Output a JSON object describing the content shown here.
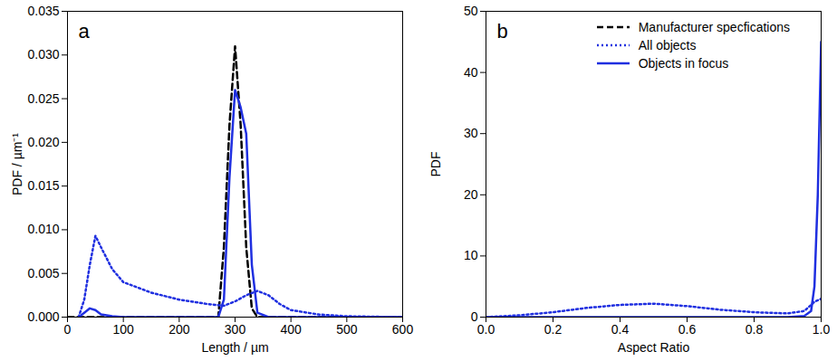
{
  "chart_data": [
    {
      "type": "line",
      "title": "a",
      "x_label": "Length / µm",
      "y_label": "PDF / µm⁻¹",
      "xlim": [
        0,
        600
      ],
      "xticks": [
        0,
        100,
        200,
        300,
        400,
        500,
        600
      ],
      "ylim": [
        0,
        0.035
      ],
      "yticks": [
        {
          "value": 0,
          "label": "0.000"
        },
        {
          "value": 0.005,
          "label": "0.005"
        },
        {
          "value": 0.01,
          "label": "0.010"
        },
        {
          "value": 0.015,
          "label": "0.015"
        },
        {
          "value": 0.02,
          "label": "0.020"
        },
        {
          "value": 0.025,
          "label": "0.025"
        },
        {
          "value": 0.03,
          "label": "0.030"
        },
        {
          "value": 0.035,
          "label": "0.035"
        }
      ],
      "series": [
        {
          "name": "Manufacturer specfications",
          "color": "#000000",
          "line_style": "dashed",
          "x": [
            0,
            260,
            270,
            280,
            290,
            300,
            310,
            320,
            330,
            340,
            600
          ],
          "values": [
            0,
            0,
            0,
            0.008,
            0.022,
            0.031,
            0.022,
            0.008,
            0.001,
            0,
            0
          ]
        },
        {
          "name": "All objects",
          "color": "#1f2fe0",
          "line_style": "dotted",
          "x": [
            20,
            30,
            40,
            50,
            60,
            80,
            100,
            150,
            200,
            250,
            280,
            300,
            320,
            340,
            360,
            380,
            400,
            450,
            500,
            600
          ],
          "values": [
            0,
            0.002,
            0.006,
            0.0093,
            0.008,
            0.0055,
            0.004,
            0.0028,
            0.002,
            0.0015,
            0.0013,
            0.0018,
            0.0025,
            0.003,
            0.0025,
            0.0015,
            0.0008,
            0.0003,
            0.0001,
            0
          ]
        },
        {
          "name": "Objects in focus",
          "color": "#1f2fe0",
          "line_style": "solid",
          "x": [
            20,
            30,
            40,
            50,
            60,
            80,
            100,
            200,
            270,
            280,
            290,
            300,
            310,
            320,
            330,
            340,
            360,
            600
          ],
          "values": [
            0,
            0.0005,
            0.001,
            0.0008,
            0.0003,
            0.0001,
            0,
            0,
            0,
            0.002,
            0.016,
            0.026,
            0.024,
            0.021,
            0.006,
            0.0005,
            0,
            0
          ]
        }
      ]
    },
    {
      "type": "line",
      "title": "b",
      "x_label": "Aspect Ratio",
      "y_label": "PDF",
      "xlim": [
        0,
        1
      ],
      "xticks": [
        {
          "value": 0,
          "label": "0.0"
        },
        0.2,
        0.4,
        0.6,
        0.8,
        {
          "value": 1,
          "label": "1.0"
        }
      ],
      "ylim": [
        0,
        50
      ],
      "yticks": [
        0,
        10,
        20,
        30,
        40,
        50
      ],
      "legend": "upper right",
      "series": [
        {
          "name": "Manufacturer specfications",
          "color": "#000000",
          "line_style": "dashed",
          "x": [],
          "values": []
        },
        {
          "name": "All objects",
          "color": "#1f2fe0",
          "line_style": "dotted",
          "x": [
            0,
            0.1,
            0.2,
            0.3,
            0.4,
            0.5,
            0.6,
            0.7,
            0.8,
            0.9,
            0.95,
            0.98,
            1
          ],
          "values": [
            0,
            0.3,
            0.8,
            1.5,
            2,
            2.2,
            1.8,
            1.2,
            0.8,
            0.6,
            1,
            2.5,
            3
          ]
        },
        {
          "name": "Objects in focus",
          "color": "#1f2fe0",
          "line_style": "solid",
          "x": [
            0,
            0.9,
            0.95,
            0.97,
            0.98,
            0.99,
            1
          ],
          "values": [
            0,
            0,
            0.2,
            1,
            5,
            20,
            45
          ]
        }
      ]
    }
  ]
}
